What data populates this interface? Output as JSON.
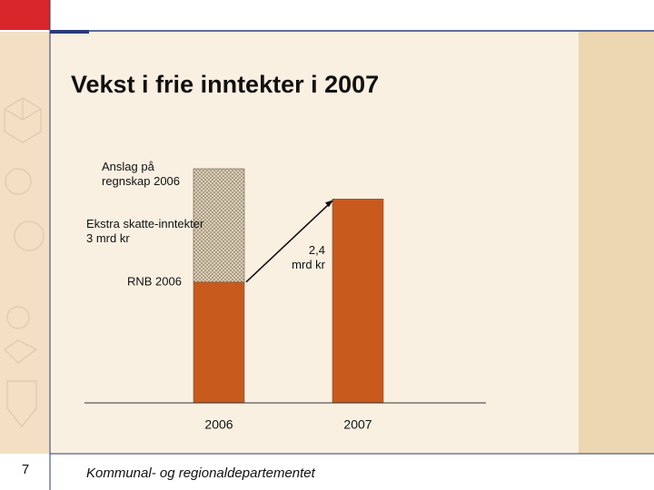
{
  "chart_data": {
    "type": "bar",
    "stacked": true,
    "title": "Vekst i frie inntekter i 2007",
    "categories": [
      "2006",
      "2007"
    ],
    "series": [
      {
        "color": "#c85a1e",
        "values": [
          3.2,
          5.4
        ]
      },
      {
        "color": "#d8c8a8",
        "pattern": "hatch",
        "values": [
          3,
          null
        ]
      }
    ],
    "annotations": [
      "Anslag på regnskap 2006",
      "Ekstra skatte-inntekter 3 mrd kr",
      "RNB 2006",
      "2,4 mrd kr"
    ],
    "footer": "Kommunal- og regionaldepartementet",
    "page_number": "7"
  }
}
